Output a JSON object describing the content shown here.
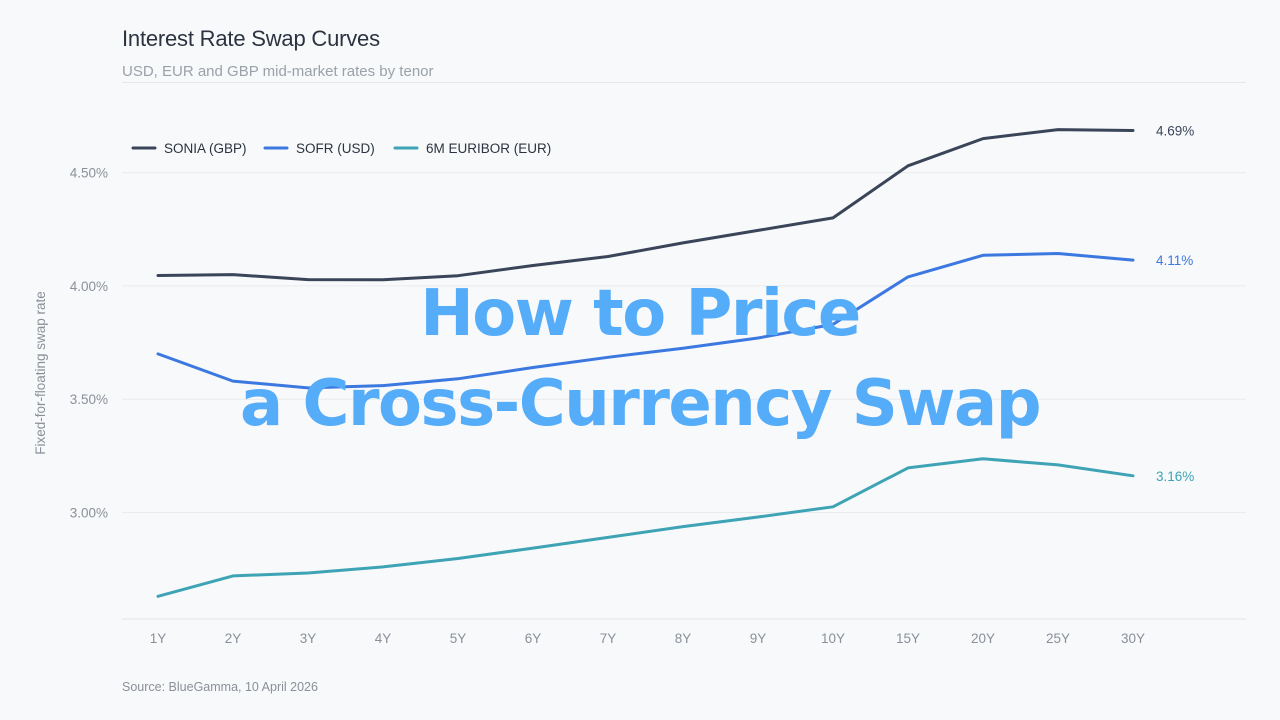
{
  "header": {
    "title": "Interest Rate Swap Curves",
    "subtitle": "USD, EUR and GBP mid-market rates by tenor"
  },
  "footer": {
    "source": "Source: BlueGamma, 10 April 2026"
  },
  "overlay": {
    "line1": "How to Price",
    "line2": "a Cross-Currency Swap"
  },
  "chart_data": {
    "type": "line",
    "title": "Interest Rate Swap Curves",
    "subtitle": "USD, EUR and GBP mid-market rates by tenor",
    "xlabel": "",
    "ylabel": "Fixed-for-floating swap rate",
    "categories": [
      "1Y",
      "2Y",
      "3Y",
      "4Y",
      "5Y",
      "6Y",
      "7Y",
      "8Y",
      "9Y",
      "10Y",
      "15Y",
      "20Y",
      "25Y",
      "30Y"
    ],
    "yticks": [
      3.0,
      3.5,
      4.0,
      4.5
    ],
    "ytick_labels": [
      "3.00%",
      "3.50%",
      "4.00%",
      "4.50%"
    ],
    "ylim": [
      2.53,
      4.9
    ],
    "grid": true,
    "legend_position": "top-left",
    "series": [
      {
        "name": "SONIA (GBP)",
        "color": "#3a4559",
        "values": [
          4.046,
          4.05,
          4.028,
          4.027,
          4.045,
          4.09,
          4.13,
          4.19,
          4.245,
          4.3,
          4.53,
          4.65,
          4.69,
          4.686
        ],
        "end_label": "4.69%"
      },
      {
        "name": "SOFR (USD)",
        "color": "#3b78e0",
        "values": [
          3.7,
          3.58,
          3.55,
          3.56,
          3.59,
          3.64,
          3.685,
          3.725,
          3.77,
          3.83,
          4.04,
          4.135,
          4.143,
          4.114
        ],
        "end_label": "4.11%"
      },
      {
        "name": "6M EURIBOR (EUR)",
        "color": "#3ea4b5",
        "values": [
          2.63,
          2.72,
          2.733,
          2.76,
          2.797,
          2.843,
          2.89,
          2.938,
          2.98,
          3.025,
          3.197,
          3.237,
          3.21,
          3.162
        ],
        "end_label": "3.16%"
      }
    ]
  }
}
